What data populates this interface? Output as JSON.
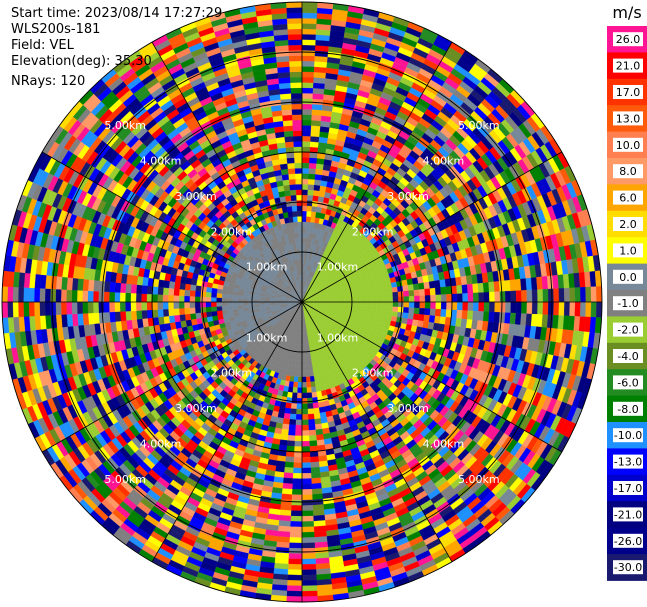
{
  "header": {
    "start_time": "Start time: 2023/08/14 17:27:29",
    "instrument": "WLS200s-181",
    "field": "Field: VEL",
    "elevation": "Elevation(deg): 35.30",
    "nrays": "NRays: 120"
  },
  "colorbar": {
    "unit": "m/s",
    "ticks": [
      "26.0",
      "21.0",
      "17.0",
      "13.0",
      "10.0",
      "8.0",
      "6.0",
      "2.0",
      "1.0",
      "0.0",
      "-1.0",
      "-2.0",
      "-4.0",
      "-6.0",
      "-8.0",
      "-10.0",
      "-13.0",
      "-17.0",
      "-21.0",
      "-26.0",
      "-30.0"
    ],
    "colors": [
      "#ff1493",
      "#ff0000",
      "#ff3300",
      "#ff5a0a",
      "#ff7f50",
      "#ff9966",
      "#ffa500",
      "#ffdd00",
      "#ffff00",
      "#778899",
      "#808080",
      "#9acd32",
      "#6b8e23",
      "#228b22",
      "#008000",
      "#1e90ff",
      "#0000ff",
      "#0000cd",
      "#000080",
      "#00008b",
      "#191970"
    ]
  },
  "chart_data": {
    "type": "heatmap",
    "projection": "polar-ppi",
    "field": "VEL",
    "units": "m/s",
    "nrays": 120,
    "range_rings_km": [
      1,
      2,
      3,
      4,
      5,
      6
    ],
    "range_labels": [
      "1.00km",
      "2.00km",
      "3.00km",
      "4.00km",
      "5.00km"
    ],
    "value_range": [
      -30,
      30
    ],
    "near_field": [
      {
        "sector": "west",
        "range_km": [
          0,
          1.6
        ],
        "value_ms": 1.5
      },
      {
        "sector": "south-west",
        "range_km": [
          0,
          1.4
        ],
        "value_ms": 0.0
      },
      {
        "sector": "east",
        "range_km": [
          0,
          1.8
        ],
        "value_ms": -3.0
      }
    ],
    "far_field": "noisy (all values)"
  }
}
